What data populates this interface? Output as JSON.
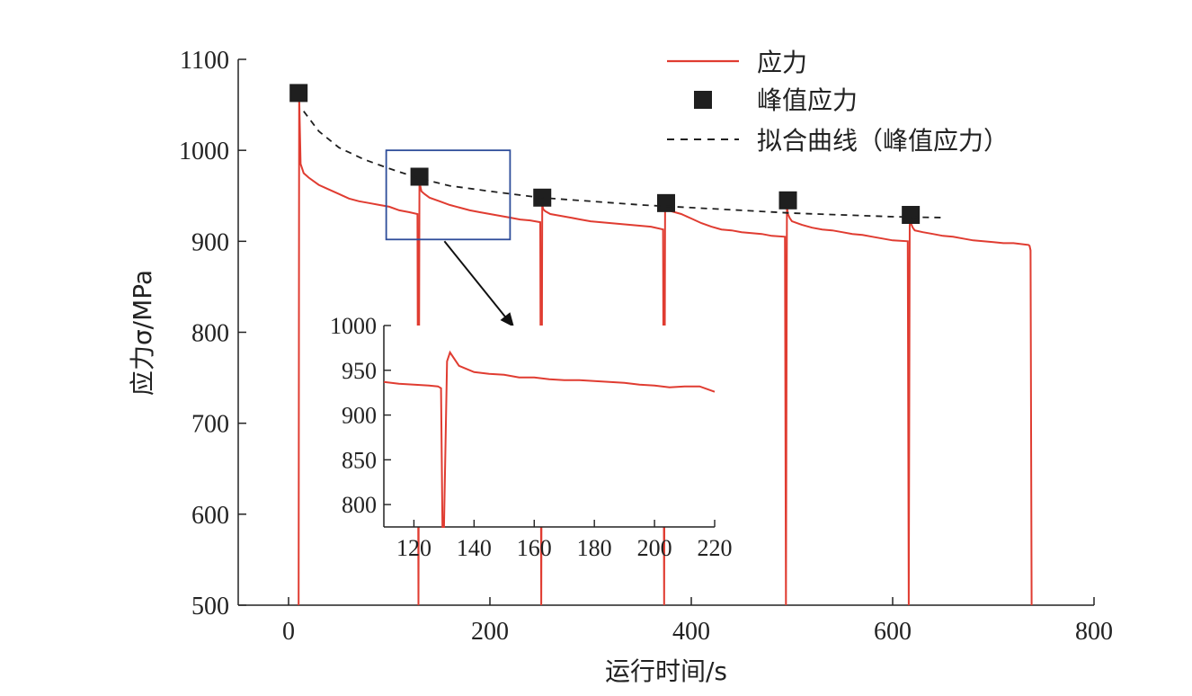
{
  "chart_data": {
    "type": "line",
    "xlabel": "运行时间/s",
    "ylabel": "应力σ/MPa",
    "xlim": [
      -50,
      800
    ],
    "ylim": [
      500,
      1100
    ],
    "xticks": [
      0,
      200,
      400,
      600,
      800
    ],
    "yticks": [
      500,
      600,
      700,
      800,
      900,
      1000,
      1100
    ],
    "legend_position": "top-right",
    "series": [
      {
        "name": "应力",
        "kind": "line",
        "color": "#e03c31",
        "x": [
          10,
          10.5,
          12,
          15,
          20,
          30,
          40,
          50,
          60,
          70,
          80,
          90,
          100,
          110,
          120,
          128,
          129,
          130,
          132,
          135,
          140,
          150,
          160,
          170,
          180,
          190,
          200,
          210,
          220,
          230,
          240,
          250,
          251,
          252,
          253,
          255,
          260,
          270,
          280,
          290,
          300,
          310,
          320,
          330,
          340,
          350,
          360,
          372,
          373,
          374,
          375,
          378,
          380,
          390,
          400,
          410,
          420,
          430,
          440,
          450,
          460,
          470,
          480,
          493,
          494,
          495,
          496,
          498,
          500,
          510,
          520,
          530,
          540,
          550,
          560,
          570,
          580,
          590,
          600,
          615,
          616,
          617,
          618,
          620,
          622,
          630,
          640,
          650,
          660,
          670,
          680,
          690,
          700,
          710,
          720,
          735,
          736,
          737,
          738
        ],
        "y": [
          500,
          1060,
          985,
          975,
          970,
          962,
          957,
          952,
          947,
          944,
          942,
          940,
          938,
          934,
          932,
          930,
          500,
          965,
          955,
          952,
          948,
          944,
          940,
          937,
          934,
          932,
          930,
          928,
          926,
          924,
          923,
          921,
          500,
          940,
          935,
          933,
          930,
          928,
          926,
          924,
          922,
          921,
          920,
          919,
          918,
          917,
          916,
          913,
          500,
          950,
          940,
          936,
          933,
          930,
          925,
          920,
          916,
          913,
          912,
          910,
          909,
          908,
          906,
          905,
          500,
          940,
          930,
          925,
          922,
          918,
          915,
          913,
          912,
          910,
          908,
          907,
          905,
          903,
          901,
          900,
          500,
          925,
          920,
          915,
          912,
          910,
          908,
          906,
          905,
          903,
          901,
          900,
          899,
          898,
          898,
          896,
          895,
          890,
          500
        ]
      },
      {
        "name": "峰值应力",
        "kind": "marker",
        "color": "#1f1f1f",
        "x": [
          10,
          130,
          252,
          375,
          496,
          618
        ],
        "y": [
          1063,
          971,
          948,
          942,
          945,
          929
        ]
      },
      {
        "name": "拟合曲线（峰值应力）",
        "kind": "dashed",
        "color": "#1f1f1f",
        "x": [
          15,
          30,
          50,
          75,
          100,
          130,
          160,
          200,
          250,
          300,
          350,
          400,
          450,
          500,
          550,
          600,
          650
        ],
        "y": [
          1043,
          1021,
          1003,
          990,
          980,
          969,
          961,
          955,
          948,
          944,
          940,
          937,
          934,
          931,
          929,
          927,
          926
        ]
      }
    ],
    "zoom_box": {
      "x": [
        97,
        220
      ],
      "y": [
        902,
        1000
      ]
    },
    "inset": {
      "type": "line",
      "xlim": [
        110,
        220
      ],
      "ylim": [
        775,
        1000
      ],
      "xticks": [
        120,
        140,
        160,
        180,
        200,
        220
      ],
      "yticks": [
        800,
        850,
        900,
        950,
        1000
      ],
      "series_color": "#e03c31",
      "x": [
        110,
        115,
        120,
        125,
        128,
        129,
        129.5,
        130,
        131,
        132,
        135,
        140,
        145,
        150,
        155,
        160,
        165,
        170,
        175,
        180,
        185,
        190,
        195,
        200,
        205,
        210,
        215,
        220
      ],
      "y": [
        937,
        935,
        934,
        933,
        932,
        930,
        775,
        775,
        960,
        970,
        955,
        948,
        946,
        945,
        942,
        942,
        940,
        939,
        939,
        938,
        937,
        936,
        934,
        933,
        931,
        932,
        932,
        926
      ]
    }
  }
}
